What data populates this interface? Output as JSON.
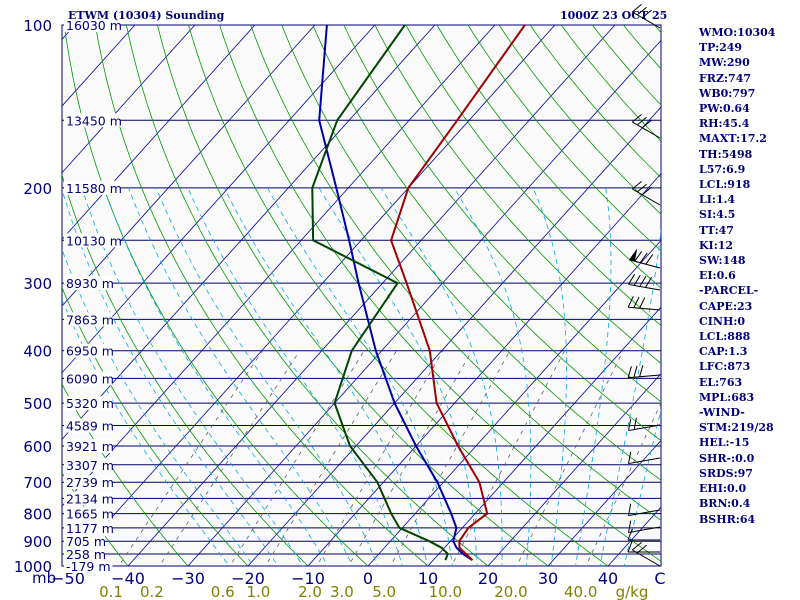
{
  "header": {
    "title": "ETWM (10304) Sounding",
    "timestamp": "1000Z 23 OCT 25"
  },
  "stats": [
    "WMO:10304",
    "TP:249",
    "MW:290",
    "FRZ:747",
    "WB0:797",
    "PW:0.64",
    "RH:45.4",
    "MAXT:17.2",
    "TH:5498",
    "L57:6.9",
    "LCL:918",
    "LI:1.4",
    "SI:4.5",
    "TT:47",
    "KI:12",
    "SW:148",
    "EI:0.6",
    "-PARCEL-",
    "CAPE:23",
    "CINH:0",
    "LCL:888",
    "CAP:1.3",
    "LFC:873",
    "EL:763",
    "MPL:683",
    "-WIND-",
    "STM:219/28",
    "HEL:-15",
    "SHR-:0.0",
    "SRDS:97",
    "EHI:0.0",
    "BRN:0.4",
    "BSHR:64"
  ],
  "colors": {
    "frame": "#00007a",
    "isobar": "#000066",
    "isotherm": "#0000a0",
    "dry_adiabat": "#009900",
    "moist_adiabat": "#00aaee",
    "mixing_ratio": "#606060",
    "temperature": "#a00000",
    "dewpoint": "#004400",
    "parcel": "#0000aa",
    "axis_text": "#000080",
    "mixing_text": "#808000",
    "wind": "#000000"
  },
  "chart_data": {
    "type": "skew-t",
    "x_axis_unit": "°C",
    "y_axis_unit": "mb",
    "pressure_ticks": [
      100,
      200,
      300,
      400,
      500,
      600,
      700,
      800,
      900,
      1000
    ],
    "temperature_ticks": [
      -50,
      -40,
      -30,
      -20,
      -10,
      0,
      10,
      20,
      30,
      40
    ],
    "temp_tick_labels": [
      "−50",
      "−40",
      "−30",
      "−20",
      "−10",
      "0",
      "10",
      "20",
      "30",
      "40"
    ],
    "y_unit_label": "mb",
    "celsius_label": "C",
    "mixing_ratio_unit": "g/kg",
    "mixing_ratio_labels": [
      "0.1",
      "0.2",
      "0.6",
      "1.0",
      "2.0",
      "3.0",
      "5.0",
      "10.0",
      "20.0",
      "40.0"
    ],
    "height_labels": [
      {
        "p": 100,
        "label": "16030 m"
      },
      {
        "p": 150,
        "label": "13450 m"
      },
      {
        "p": 200,
        "label": "11580 m"
      },
      {
        "p": 250,
        "label": "10130 m"
      },
      {
        "p": 300,
        "label": "8930 m"
      },
      {
        "p": 350,
        "label": "7863 m"
      },
      {
        "p": 400,
        "label": "6950 m"
      },
      {
        "p": 450,
        "label": "6090 m"
      },
      {
        "p": 500,
        "label": "5320 m"
      },
      {
        "p": 550,
        "label": "4589 m"
      },
      {
        "p": 600,
        "label": "3921 m"
      },
      {
        "p": 650,
        "label": "3307 m"
      },
      {
        "p": 700,
        "label": "2739 m"
      },
      {
        "p": 750,
        "label": "2134 m"
      },
      {
        "p": 800,
        "label": "1665 m"
      },
      {
        "p": 850,
        "label": "1177 m"
      },
      {
        "p": 900,
        "label": "705 m"
      },
      {
        "p": 950,
        "label": "258 m"
      },
      {
        "p": 1000,
        "label": "-179 m"
      }
    ],
    "series": [
      {
        "key": "temperature",
        "points": [
          [
            975,
            16.5
          ],
          [
            950,
            14.5
          ],
          [
            925,
            12.5
          ],
          [
            900,
            11.5
          ],
          [
            850,
            11.0
          ],
          [
            800,
            12.0
          ],
          [
            700,
            6.0
          ],
          [
            600,
            -3.0
          ],
          [
            500,
            -13.0
          ],
          [
            400,
            -22.0
          ],
          [
            300,
            -36.0
          ],
          [
            250,
            -45.0
          ],
          [
            200,
            -50.0
          ],
          [
            150,
            -52.0
          ],
          [
            100,
            -55.0
          ]
        ]
      },
      {
        "key": "dewpoint",
        "points": [
          [
            975,
            12.0
          ],
          [
            950,
            11.5
          ],
          [
            925,
            9.5
          ],
          [
            900,
            6.5
          ],
          [
            850,
            -0.5
          ],
          [
            800,
            -4.0
          ],
          [
            700,
            -11.0
          ],
          [
            600,
            -21.0
          ],
          [
            500,
            -30.0
          ],
          [
            400,
            -35.0
          ],
          [
            300,
            -37.5
          ],
          [
            250,
            -58.0
          ],
          [
            200,
            -66.0
          ],
          [
            150,
            -72.0
          ],
          [
            100,
            -75.0
          ]
        ]
      },
      {
        "key": "parcel",
        "points": [
          [
            975,
            16.5
          ],
          [
            950,
            14.0
          ],
          [
            925,
            12.0
          ],
          [
            900,
            10.5
          ],
          [
            850,
            9.0
          ],
          [
            800,
            6.0
          ],
          [
            700,
            -1.0
          ],
          [
            600,
            -10.0
          ],
          [
            500,
            -20.0
          ],
          [
            400,
            -31.0
          ],
          [
            300,
            -44.0
          ],
          [
            250,
            -52.0
          ],
          [
            200,
            -62.0
          ],
          [
            150,
            -75.0
          ],
          [
            100,
            -88.0
          ]
        ]
      }
    ]
  }
}
